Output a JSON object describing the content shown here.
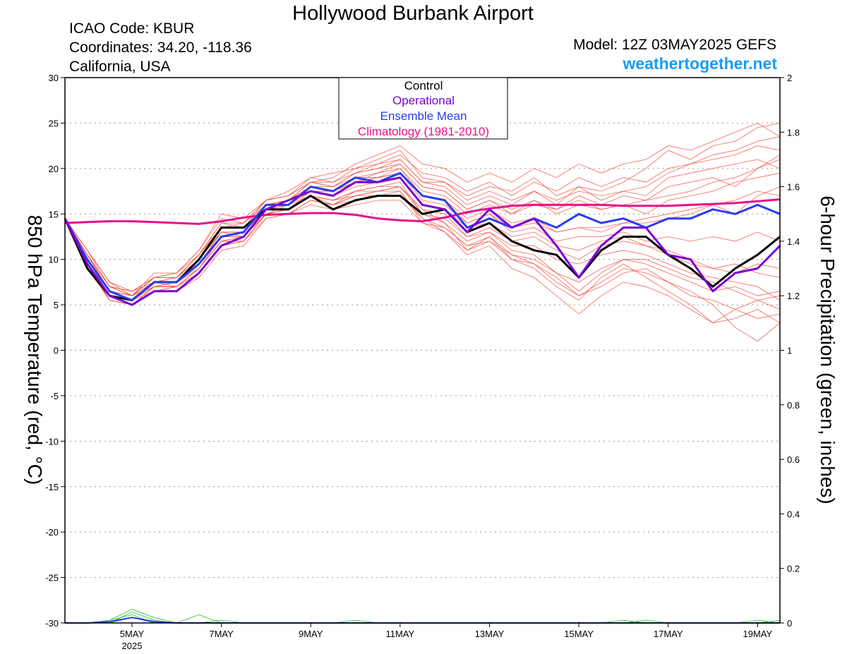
{
  "header": {
    "title": "Hollywood Burbank Airport",
    "icao": "ICAO Code: KBUR",
    "coords": "Coordinates: 34.20, -118.36",
    "region": "California, USA",
    "model": "Model: 12Z 03MAY2025 GEFS",
    "site": "weathertogether.net"
  },
  "colors": {
    "control": "#000000",
    "operational": "#7b00d4",
    "ensemble_mean": "#2a3cf0",
    "climatology": "#e8108a",
    "members": "#f04a3a",
    "precip": "#22bb22",
    "site": "#1a9cf0"
  },
  "chart_data": {
    "type": "line",
    "ylabel": "850 hPa Temperature (red, °C)",
    "y2label": "6-hour Precipitation (green, inches)",
    "ylim": [
      -30,
      30
    ],
    "y2lim": [
      0,
      2
    ],
    "yticks": [
      30,
      25,
      20,
      15,
      10,
      5,
      0,
      -5,
      -10,
      -15,
      -20,
      -25,
      -30
    ],
    "y2ticks": [
      "2",
      "1.8",
      "1.6",
      "1.4",
      "1.2",
      "1",
      "0.8",
      "0.6",
      "0.4",
      "0.2",
      "0"
    ],
    "xlim": [
      3.5,
      19.5
    ],
    "xticks": [
      {
        "x": 5,
        "label": "5MAY",
        "sub": "2025"
      },
      {
        "x": 7,
        "label": "7MAY"
      },
      {
        "x": 9,
        "label": "9MAY"
      },
      {
        "x": 11,
        "label": "11MAY"
      },
      {
        "x": 13,
        "label": "13MAY"
      },
      {
        "x": 15,
        "label": "15MAY"
      },
      {
        "x": 17,
        "label": "17MAY"
      },
      {
        "x": 19,
        "label": "19MAY"
      }
    ],
    "grid": true,
    "legend": {
      "position": "top-center",
      "entries": [
        "Control",
        "Operational",
        "Ensemble Mean",
        "Climatology (1981-2010)"
      ]
    },
    "series": [
      {
        "name": "Control",
        "x": [
          3.5,
          4.0,
          4.5,
          5.0,
          5.5,
          6.0,
          6.5,
          7.0,
          7.5,
          8.0,
          8.5,
          9.0,
          9.5,
          10.0,
          10.5,
          11.0,
          11.5,
          12.0,
          12.5,
          13.0,
          13.5,
          14.0,
          14.5,
          15.0,
          15.5,
          16.0,
          16.5,
          17.0,
          17.5,
          18.0,
          18.5,
          19.0,
          19.5
        ],
        "y": [
          14.5,
          9.0,
          6.0,
          5.5,
          7.5,
          7.5,
          10.0,
          13.5,
          13.5,
          15.5,
          15.5,
          17.0,
          15.5,
          16.5,
          17.0,
          17.0,
          15.0,
          15.5,
          13.0,
          14.0,
          12.0,
          11.0,
          10.5,
          8.0,
          11.0,
          12.5,
          12.5,
          10.5,
          9.0,
          7.0,
          9.0,
          10.5,
          12.5
        ]
      },
      {
        "name": "Operational",
        "x": [
          3.5,
          4.0,
          4.5,
          5.0,
          5.5,
          6.0,
          6.5,
          7.0,
          7.5,
          8.0,
          8.5,
          9.0,
          9.5,
          10.0,
          10.5,
          11.0,
          11.5,
          12.0,
          12.5,
          13.0,
          13.5,
          14.0,
          14.5,
          15.0,
          15.5,
          16.0,
          16.5,
          17.0,
          17.5,
          18.0,
          18.5,
          19.0,
          19.5
        ],
        "y": [
          14.5,
          9.5,
          6.0,
          5.0,
          6.5,
          6.5,
          8.5,
          11.5,
          12.5,
          15.5,
          16.5,
          17.5,
          17.0,
          18.5,
          18.5,
          19.0,
          16.0,
          15.5,
          13.0,
          15.5,
          13.5,
          14.5,
          11.5,
          8.0,
          11.5,
          13.5,
          13.5,
          10.5,
          10.0,
          6.5,
          8.5,
          9.0,
          11.5
        ]
      },
      {
        "name": "Ensemble Mean",
        "x": [
          3.5,
          4.0,
          4.5,
          5.0,
          5.5,
          6.0,
          6.5,
          7.0,
          7.5,
          8.0,
          8.5,
          9.0,
          9.5,
          10.0,
          10.5,
          11.0,
          11.5,
          12.0,
          12.5,
          13.0,
          13.5,
          14.0,
          14.5,
          15.0,
          15.5,
          16.0,
          16.5,
          17.0,
          17.5,
          18.0,
          18.5,
          19.0,
          19.5
        ],
        "y": [
          14.5,
          10.0,
          6.5,
          5.5,
          7.5,
          7.5,
          9.5,
          12.5,
          13.0,
          16.0,
          16.0,
          18.0,
          17.5,
          19.0,
          18.5,
          19.5,
          17.0,
          16.5,
          13.5,
          14.5,
          13.5,
          14.5,
          13.5,
          15.0,
          14.0,
          14.5,
          13.5,
          14.5,
          14.5,
          15.5,
          15.0,
          16.0,
          15.0
        ]
      },
      {
        "name": "Climatology (1981-2010)",
        "x": [
          3.5,
          4.0,
          4.5,
          5.0,
          5.5,
          6.0,
          6.5,
          7.0,
          7.5,
          8.0,
          8.5,
          9.0,
          9.5,
          10.0,
          10.5,
          11.0,
          11.5,
          12.0,
          12.5,
          13.0,
          13.5,
          14.0,
          14.5,
          15.0,
          15.5,
          16.0,
          16.5,
          17.0,
          17.5,
          18.0,
          18.5,
          19.0,
          19.5
        ],
        "y": [
          14.0,
          14.1,
          14.2,
          14.2,
          14.1,
          14.0,
          13.9,
          14.2,
          14.6,
          14.9,
          15.0,
          15.1,
          15.1,
          14.9,
          14.5,
          14.3,
          14.2,
          14.6,
          15.2,
          15.6,
          15.9,
          16.0,
          16.0,
          16.0,
          16.0,
          15.9,
          15.9,
          15.9,
          16.0,
          16.1,
          16.2,
          16.4,
          16.6
        ]
      }
    ],
    "members": [
      [
        14.5,
        10.5,
        7.0,
        6.5,
        8.0,
        8.5,
        11.0,
        15.0,
        14.5,
        16.5,
        17.5,
        19.0,
        19.5,
        20.0,
        21.0,
        22.0,
        19.0,
        18.5,
        17.0,
        18.0,
        17.5,
        19.0,
        17.0,
        18.0,
        17.5,
        18.5,
        20.0,
        22.0,
        21.0,
        22.5,
        23.0,
        24.5,
        25.0
      ],
      [
        14.5,
        9.5,
        5.5,
        5.0,
        7.0,
        7.0,
        9.0,
        12.0,
        12.0,
        15.0,
        15.5,
        17.0,
        16.5,
        17.5,
        18.0,
        18.0,
        15.5,
        14.0,
        11.0,
        12.5,
        10.0,
        9.0,
        7.0,
        5.5,
        8.0,
        9.5,
        8.0,
        6.5,
        5.0,
        3.0,
        4.5,
        5.5,
        4.5
      ],
      [
        14.5,
        11.0,
        7.5,
        6.0,
        7.5,
        8.0,
        10.5,
        14.0,
        13.5,
        16.0,
        16.5,
        18.5,
        18.0,
        19.5,
        20.0,
        20.5,
        18.0,
        17.5,
        15.5,
        16.5,
        15.0,
        16.5,
        15.5,
        17.0,
        16.0,
        17.0,
        16.5,
        18.0,
        18.5,
        19.0,
        18.0,
        20.0,
        21.5
      ],
      [
        14.5,
        10.0,
        6.0,
        5.5,
        6.5,
        6.5,
        8.0,
        11.0,
        11.5,
        14.5,
        15.0,
        16.0,
        15.5,
        16.0,
        16.5,
        16.5,
        14.0,
        13.5,
        11.5,
        12.0,
        10.5,
        9.5,
        8.0,
        6.0,
        7.0,
        8.5,
        9.0,
        7.5,
        6.5,
        5.0,
        2.5,
        1.0,
        3.0
      ],
      [
        14.5,
        10.5,
        6.5,
        6.0,
        8.0,
        8.0,
        10.0,
        13.5,
        13.5,
        16.5,
        17.0,
        18.5,
        19.0,
        20.5,
        21.5,
        22.5,
        20.5,
        20.0,
        18.5,
        19.5,
        18.5,
        20.0,
        19.0,
        20.5,
        19.5,
        20.5,
        21.0,
        22.5,
        22.0,
        23.0,
        24.0,
        25.0,
        23.5
      ],
      [
        14.5,
        9.0,
        5.5,
        5.0,
        6.5,
        7.0,
        8.5,
        11.5,
        12.0,
        15.0,
        15.5,
        17.0,
        16.5,
        17.5,
        18.0,
        18.5,
        15.0,
        14.0,
        12.0,
        13.0,
        11.0,
        10.5,
        8.5,
        7.5,
        9.0,
        10.0,
        9.5,
        8.5,
        7.5,
        6.5,
        7.0,
        6.0,
        6.5
      ],
      [
        14.5,
        10.5,
        7.0,
        6.5,
        7.5,
        8.0,
        10.0,
        13.0,
        13.0,
        15.5,
        16.0,
        17.5,
        17.5,
        18.5,
        19.5,
        20.0,
        17.5,
        17.0,
        15.0,
        16.0,
        15.0,
        16.0,
        15.5,
        16.5,
        15.5,
        16.0,
        15.0,
        16.5,
        17.0,
        17.5,
        18.5,
        19.0,
        19.5
      ],
      [
        14.5,
        9.5,
        6.0,
        5.5,
        7.0,
        7.5,
        9.5,
        12.5,
        12.5,
        15.0,
        16.0,
        17.0,
        16.0,
        17.0,
        17.5,
        17.5,
        14.5,
        13.0,
        10.5,
        11.5,
        9.0,
        8.0,
        6.0,
        4.0,
        6.0,
        7.5,
        7.0,
        6.0,
        4.5,
        3.0,
        3.5,
        4.5,
        3.0
      ],
      [
        14.5,
        11.0,
        7.0,
        6.0,
        8.5,
        8.5,
        11.0,
        14.5,
        14.0,
        16.5,
        17.0,
        19.0,
        18.5,
        20.0,
        20.5,
        21.5,
        19.5,
        19.0,
        17.5,
        18.5,
        17.0,
        18.5,
        17.5,
        19.0,
        18.0,
        19.0,
        18.5,
        20.0,
        20.5,
        21.0,
        21.5,
        22.5,
        22.0
      ],
      [
        14.5,
        10.0,
        6.5,
        5.5,
        7.5,
        7.5,
        9.0,
        12.0,
        12.5,
        15.5,
        15.5,
        17.5,
        17.0,
        18.0,
        18.5,
        19.0,
        16.0,
        15.5,
        13.5,
        14.0,
        12.5,
        13.0,
        11.5,
        11.0,
        12.0,
        12.5,
        11.5,
        11.0,
        10.0,
        9.0,
        9.5,
        8.5,
        8.0
      ],
      [
        14.5,
        10.5,
        6.5,
        6.0,
        7.0,
        7.5,
        9.5,
        13.0,
        13.0,
        16.0,
        16.5,
        18.0,
        17.5,
        19.0,
        19.0,
        19.5,
        17.0,
        16.5,
        14.5,
        15.5,
        14.0,
        14.5,
        13.0,
        13.5,
        13.5,
        14.0,
        14.0,
        14.5,
        15.0,
        16.0,
        15.0,
        17.0,
        18.0
      ],
      [
        14.5,
        9.5,
        6.0,
        5.5,
        7.5,
        7.0,
        9.0,
        12.5,
        12.5,
        15.0,
        15.0,
        16.5,
        16.0,
        17.5,
        17.5,
        18.0,
        15.5,
        15.0,
        12.5,
        13.0,
        11.5,
        11.5,
        10.0,
        9.5,
        10.5,
        11.0,
        10.5,
        9.5,
        8.5,
        8.0,
        7.5,
        7.0,
        5.5
      ],
      [
        14.5,
        10.5,
        7.0,
        6.0,
        8.0,
        8.0,
        10.5,
        13.5,
        14.0,
        16.0,
        16.5,
        18.5,
        18.5,
        19.5,
        20.0,
        21.0,
        18.5,
        18.0,
        16.0,
        17.0,
        16.0,
        17.5,
        16.5,
        17.5,
        17.0,
        17.5,
        17.0,
        19.0,
        19.5,
        20.0,
        20.5,
        21.0,
        20.0
      ],
      [
        14.5,
        10.0,
        6.0,
        5.5,
        7.0,
        7.0,
        9.0,
        12.0,
        12.0,
        15.0,
        15.5,
        17.0,
        16.5,
        17.0,
        17.5,
        18.0,
        15.0,
        14.5,
        12.5,
        13.5,
        12.0,
        12.5,
        11.0,
        10.0,
        11.5,
        12.0,
        11.5,
        10.5,
        9.5,
        9.0,
        8.5,
        9.5,
        9.0
      ],
      [
        14.5,
        11.0,
        7.5,
        6.5,
        8.0,
        8.5,
        10.5,
        14.0,
        14.0,
        16.5,
        17.0,
        18.5,
        18.0,
        19.5,
        20.5,
        21.0,
        18.5,
        18.5,
        16.5,
        17.5,
        16.5,
        17.5,
        16.0,
        18.0,
        16.5,
        17.5,
        18.0,
        19.5,
        20.5,
        21.5,
        22.0,
        23.0,
        23.5
      ],
      [
        14.5,
        9.5,
        5.5,
        5.0,
        6.5,
        7.0,
        9.0,
        12.0,
        12.5,
        15.0,
        15.0,
        16.5,
        16.0,
        16.5,
        17.0,
        17.0,
        14.5,
        13.5,
        11.5,
        12.5,
        10.5,
        10.0,
        8.5,
        6.5,
        8.5,
        10.0,
        10.0,
        9.0,
        8.0,
        7.5,
        6.5,
        5.5,
        6.0
      ],
      [
        14.5,
        10.5,
        6.5,
        6.0,
        7.5,
        7.5,
        9.5,
        13.0,
        13.0,
        15.5,
        16.0,
        17.5,
        17.5,
        18.5,
        19.0,
        19.5,
        16.5,
        16.0,
        14.0,
        15.0,
        13.5,
        14.0,
        13.0,
        13.5,
        13.0,
        14.0,
        14.5,
        15.0,
        15.5,
        16.0,
        16.5,
        17.5,
        17.0
      ],
      [
        14.5,
        10.0,
        6.5,
        5.5,
        7.5,
        7.5,
        10.0,
        13.0,
        12.5,
        15.5,
        16.0,
        18.0,
        17.5,
        18.5,
        19.0,
        20.0,
        17.0,
        16.5,
        14.0,
        15.0,
        13.0,
        13.5,
        12.0,
        12.5,
        12.5,
        13.0,
        12.0,
        12.5,
        12.0,
        12.5,
        12.0,
        13.0,
        12.0
      ],
      [
        14.5,
        10.5,
        7.0,
        6.0,
        8.0,
        8.0,
        10.5,
        13.5,
        13.5,
        16.0,
        16.5,
        18.0,
        18.0,
        19.0,
        19.5,
        20.5,
        18.0,
        17.5,
        15.5,
        16.5,
        15.5,
        16.5,
        15.0,
        16.0,
        15.5,
        16.0,
        16.5,
        17.0,
        17.5,
        18.5,
        19.0,
        20.0,
        21.0
      ],
      [
        14.5,
        9.5,
        6.0,
        5.0,
        7.0,
        7.0,
        8.5,
        11.5,
        12.0,
        14.5,
        15.0,
        16.5,
        16.0,
        17.0,
        17.0,
        17.5,
        14.0,
        13.0,
        11.0,
        12.0,
        10.0,
        9.5,
        7.5,
        6.0,
        7.5,
        9.0,
        8.5,
        7.5,
        6.0,
        5.5,
        4.5,
        3.5,
        4.0
      ]
    ],
    "precip": [
      [
        0.0,
        0.0,
        0.01,
        0.05,
        0.02,
        0.0,
        0.03,
        0.0,
        0.0,
        0.0,
        0.0,
        0.0,
        0.0,
        0.0,
        0.0,
        0.0,
        0.0,
        0.0,
        0.0,
        0.0,
        0.0,
        0.0,
        0.0,
        0.0,
        0.0,
        0.01,
        0.0,
        0.0,
        0.0,
        0.0,
        0.0,
        0.0,
        0.01
      ],
      [
        0.0,
        0.0,
        0.0,
        0.04,
        0.01,
        0.0,
        0.0,
        0.01,
        0.0,
        0.0,
        0.0,
        0.0,
        0.0,
        0.01,
        0.0,
        0.0,
        0.0,
        0.0,
        0.0,
        0.0,
        0.0,
        0.0,
        0.0,
        0.0,
        0.0,
        0.0,
        0.01,
        0.0,
        0.0,
        0.0,
        0.0,
        0.01,
        0.0
      ],
      [
        0.0,
        0.0,
        0.01,
        0.03,
        0.0,
        0.0,
        0.0,
        0.0,
        0.0,
        0.0,
        0.0,
        0.0,
        0.0,
        0.0,
        0.0,
        0.0,
        0.0,
        0.0,
        0.0,
        0.0,
        0.0,
        0.0,
        0.0,
        0.0,
        0.0,
        0.0,
        0.0,
        0.0,
        0.0,
        0.0,
        0.0,
        0.0,
        0.0
      ],
      [
        0.0,
        0.0,
        0.0,
        0.02,
        0.0,
        0.0,
        0.0,
        0.0,
        0.0,
        0.0,
        0.0,
        0.0,
        0.0,
        0.0,
        0.0,
        0.0,
        0.0,
        0.0,
        0.0,
        0.0,
        0.0,
        0.0,
        0.0,
        0.0,
        0.0,
        0.0,
        0.0,
        0.0,
        0.0,
        0.0,
        0.0,
        0.0,
        0.0
      ]
    ],
    "precip_mean": [
      0.0,
      0.0,
      0.005,
      0.02,
      0.005,
      0.0,
      0.0,
      0.0,
      0.0,
      0.0,
      0.0,
      0.0,
      0.0,
      0.0,
      0.0,
      0.0,
      0.0,
      0.0,
      0.0,
      0.0,
      0.0,
      0.0,
      0.0,
      0.0,
      0.0,
      0.0,
      0.0,
      0.0,
      0.0,
      0.0,
      0.0,
      0.0,
      0.0
    ]
  }
}
